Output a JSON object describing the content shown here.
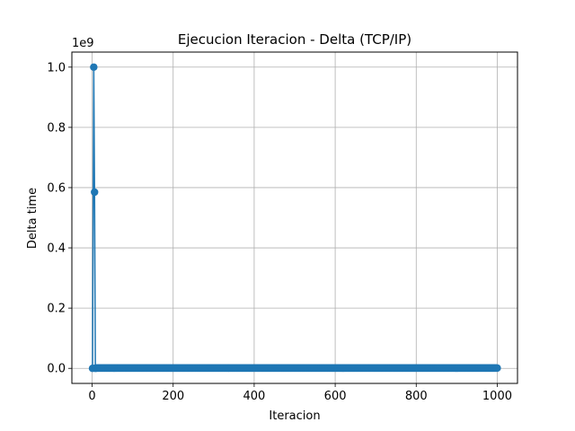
{
  "chart_data": {
    "type": "line",
    "title": "Ejecucion Iteracion - Delta  (TCP/IP)",
    "xlabel": "Iteracion",
    "ylabel": "Delta time",
    "offset_label": "1e9",
    "xlim": [
      -50,
      1050
    ],
    "ylim": [
      -0.05,
      1.05
    ],
    "xticks": [
      0,
      200,
      400,
      600,
      800,
      1000
    ],
    "xtick_labels": [
      "0",
      "200",
      "400",
      "600",
      "800",
      "1000"
    ],
    "yticks": [
      0.0,
      0.2,
      0.4,
      0.6,
      0.8,
      1.0
    ],
    "ytick_labels": [
      "0.0",
      "0.2",
      "0.4",
      "0.6",
      "0.8",
      "1.0"
    ],
    "grid": true,
    "marker": "circle",
    "color": "#1f77b4",
    "series": [
      {
        "x_range": [
          0,
          1000
        ],
        "baseline_value": 0.001,
        "spikes": [
          {
            "x": 1,
            "y": 0.0
          },
          {
            "x": 4,
            "y": 1.0
          },
          {
            "x": 6,
            "y": 0.585
          },
          {
            "x": 8,
            "y": 0.0
          }
        ]
      }
    ]
  }
}
